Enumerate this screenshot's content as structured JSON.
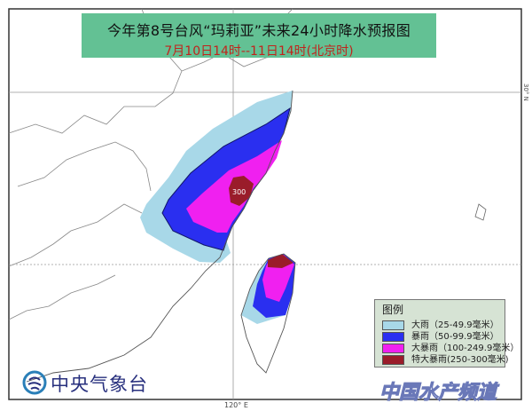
{
  "title": "今年第8号台风“玛莉亚”未来24小时降水预报图",
  "subtitle": "7月10日14时--11日14时(北京时)",
  "legend": {
    "title": "图例",
    "items": [
      {
        "label": "大雨（25-49.9毫米）",
        "color": "#a8d8e8"
      },
      {
        "label": "暴雨（50-99.9毫米）",
        "color": "#2a2ff0"
      },
      {
        "label": "大暴雨（100-249.9毫米）",
        "color": "#f020f0"
      },
      {
        "label": "特大暴雨(250-300毫米)",
        "color": "#9a1c2a"
      }
    ]
  },
  "max_label": "300",
  "agency": "中央气象台",
  "axes": {
    "lon_label": "120° E",
    "lat_label": "30° N"
  },
  "watermark": "中国水产频道"
}
